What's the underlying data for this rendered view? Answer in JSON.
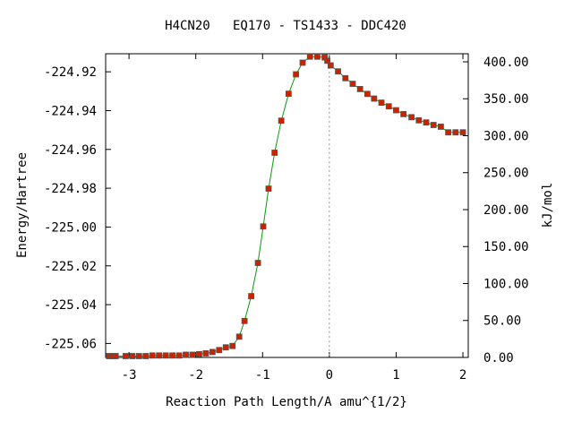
{
  "chart_data": {
    "type": "line",
    "title": "H4CN20   EQ170 - TS1433 - DDC420",
    "xlabel": "Reaction Path Length/A amu^{1/2}",
    "ylabel": "Energy/Hartree",
    "y2label": "kJ/mol",
    "xlim": [
      -3.35,
      2.08
    ],
    "ylim": [
      -225.0672,
      -224.9107
    ],
    "y2lim": [
      0.0,
      410.9
    ],
    "grid": false,
    "x_ticks": [
      {
        "value": -3,
        "label": "-3"
      },
      {
        "value": -2,
        "label": "-2"
      },
      {
        "value": -1,
        "label": "-1"
      },
      {
        "value": 0,
        "label": "0"
      },
      {
        "value": 1,
        "label": "1"
      },
      {
        "value": 2,
        "label": "2"
      }
    ],
    "y_ticks": [
      {
        "value": -224.92,
        "label": "-224.92"
      },
      {
        "value": -224.94,
        "label": "-224.94"
      },
      {
        "value": -224.96,
        "label": "-224.96"
      },
      {
        "value": -224.98,
        "label": "-224.98"
      },
      {
        "value": -225.0,
        "label": "-225.00"
      },
      {
        "value": -225.02,
        "label": "-225.02"
      },
      {
        "value": -225.04,
        "label": "-225.04"
      },
      {
        "value": -225.06,
        "label": "-225.06"
      }
    ],
    "y2_ticks": [
      {
        "value": 400,
        "label": "400.00"
      },
      {
        "value": 350,
        "label": "350.00"
      },
      {
        "value": 300,
        "label": "300.00"
      },
      {
        "value": 250,
        "label": "250.00"
      },
      {
        "value": 200,
        "label": "200.00"
      },
      {
        "value": 150,
        "label": "150.00"
      },
      {
        "value": 100,
        "label": "100.00"
      },
      {
        "value": 50,
        "label": "50.00"
      },
      {
        "value": 0,
        "label": "0.00"
      }
    ],
    "ts_marker_x": 0.0,
    "colors": {
      "line": "#0a9a0a",
      "point_fill": "#cc2200",
      "point_edge": "#555555",
      "ts_line": "#999999"
    },
    "series": [
      {
        "x": [
          -3.3,
          -3.25,
          -3.2,
          -3.05,
          -2.95,
          -2.85,
          -2.75,
          -2.65,
          -2.55,
          -2.45,
          -2.35,
          -2.25,
          -2.15,
          -2.05,
          -1.95,
          -1.85,
          -1.75,
          -1.65,
          -1.55,
          -1.45,
          -1.35,
          -1.27,
          -1.17,
          -1.07,
          -0.99,
          -0.91,
          -0.82,
          -0.72,
          -0.61,
          -0.5,
          -0.4,
          -0.29,
          -0.18,
          -0.07,
          -0.03,
          0.02,
          0.13,
          0.24,
          0.35,
          0.46,
          0.57,
          0.67,
          0.78,
          0.89,
          1.0,
          1.11,
          1.23,
          1.34,
          1.45,
          1.56,
          1.67,
          1.78,
          1.89,
          2.0
        ],
        "y": [
          -225.0665,
          -225.0665,
          -225.0665,
          -225.0665,
          -225.0665,
          -225.0665,
          -225.0665,
          -225.0662,
          -225.0662,
          -225.0662,
          -225.0662,
          -225.0662,
          -225.0658,
          -225.0658,
          -225.0655,
          -225.0651,
          -225.0644,
          -225.0634,
          -225.062,
          -225.0613,
          -225.0565,
          -225.0484,
          -225.0356,
          -225.0185,
          -224.9997,
          -224.9802,
          -224.9617,
          -224.9452,
          -224.9313,
          -224.9213,
          -224.9153,
          -224.9122,
          -224.9122,
          -224.9126,
          -224.9143,
          -224.9167,
          -224.9198,
          -224.9233,
          -224.9262,
          -224.9289,
          -224.9314,
          -224.9338,
          -224.9359,
          -224.9378,
          -224.9398,
          -224.9418,
          -224.9434,
          -224.945,
          -224.9461,
          -224.9474,
          -224.9483,
          -224.9512,
          -224.9512,
          -224.9512
        ]
      }
    ]
  }
}
